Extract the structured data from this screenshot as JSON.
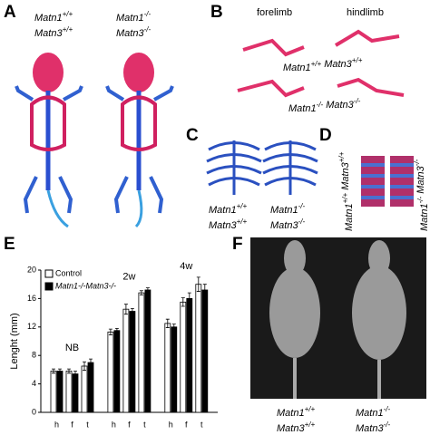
{
  "panel_a": {
    "label": "A",
    "genotypes": [
      [
        {
          "gene": "Matn1",
          "sup": "+/+"
        },
        {
          "gene": "Matn3",
          "sup": "+/+"
        }
      ],
      [
        {
          "gene": "Matn1",
          "sup": "-/-"
        },
        {
          "gene": "Matn3",
          "sup": "-/-"
        }
      ]
    ]
  },
  "panel_b": {
    "label": "B",
    "columns": [
      "forelimb",
      "hindlimb"
    ],
    "genotypes": [
      [
        {
          "gene": "Matn1",
          "sup": "+/+"
        },
        {
          "gene": "Matn3",
          "sup": "+/+"
        }
      ],
      [
        {
          "gene": "Matn1",
          "sup": "-/-"
        },
        {
          "gene": "Matn3",
          "sup": "-/-"
        }
      ]
    ]
  },
  "panel_c": {
    "label": "C",
    "genotypes": [
      [
        {
          "gene": "Matn1",
          "sup": "+/+"
        },
        {
          "gene": "Matn3",
          "sup": "+/+"
        }
      ],
      [
        {
          "gene": "Matn1",
          "sup": "-/-"
        },
        {
          "gene": "Matn3",
          "sup": "-/-"
        }
      ]
    ]
  },
  "panel_d": {
    "label": "D",
    "genotypes": [
      [
        {
          "gene": "Matn1",
          "sup": "+/+"
        },
        {
          "gene": "Matn3",
          "sup": "+/+"
        }
      ],
      [
        {
          "gene": "Matn1",
          "sup": "-/-"
        },
        {
          "gene": "Matn3",
          "sup": "-/-"
        }
      ]
    ]
  },
  "panel_e": {
    "label": "E"
  },
  "panel_f": {
    "label": "F",
    "genotypes": [
      [
        {
          "gene": "Matn1",
          "sup": "+/+"
        },
        {
          "gene": "Matn3",
          "sup": "+/+"
        }
      ],
      [
        {
          "gene": "Matn1",
          "sup": "-/-"
        },
        {
          "gene": "Matn3",
          "sup": "-/-"
        }
      ]
    ]
  },
  "chart_data": {
    "type": "bar",
    "y_label": "Lenght (mm)",
    "categories": [
      "h",
      "f",
      "t",
      "h",
      "f",
      "t",
      "h",
      "f",
      "t"
    ],
    "groups": [
      "NB",
      "2w",
      "4w"
    ],
    "series": [
      {
        "name": "Control",
        "color": "#ffffff",
        "values": [
          5.8,
          5.8,
          6.5,
          11.3,
          14.5,
          16.8,
          12.5,
          15.5,
          18.0
        ],
        "errors": [
          0.3,
          0.3,
          0.6,
          0.4,
          0.7,
          0.3,
          0.6,
          0.6,
          1.0
        ]
      },
      {
        "name": "Matn1-/-Matn3-/-",
        "color": "#000000",
        "values": [
          5.8,
          5.4,
          7.0,
          11.5,
          14.2,
          17.2,
          12.0,
          16.0,
          17.2
        ],
        "errors": [
          0.3,
          0.4,
          0.5,
          0.3,
          0.4,
          0.3,
          0.4,
          0.8,
          0.8
        ]
      }
    ],
    "ylim": [
      0,
      20
    ],
    "yticks": [
      0,
      4,
      8,
      12,
      16,
      20
    ]
  }
}
